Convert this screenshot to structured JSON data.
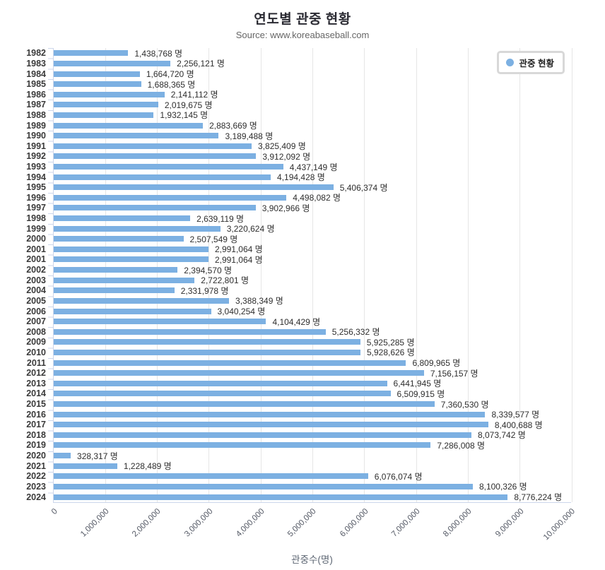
{
  "chart": {
    "title": "연도별 관중 현황",
    "subtitle": "Source: www.koreabaseball.com",
    "legend_label": "관중 현황",
    "xaxis_title": "관중수(명)"
  },
  "colors": {
    "bar": "#7CB0E2",
    "axis_line": "#ccd6eb",
    "gridline": "#e6e6e6",
    "title_text": "#2b2b33",
    "subtitle_text": "#666666"
  },
  "chart_data": {
    "type": "bar",
    "orientation": "horizontal",
    "title": "연도별 관중 현황",
    "subtitle": "Source: www.koreabaseball.com",
    "xlabel": "관중수(명)",
    "ylabel": "",
    "legend": [
      "관중 현황"
    ],
    "legend_position": "top-right",
    "grid": true,
    "xlim": [
      0,
      10000000
    ],
    "unit": "명",
    "bar_color": "#7CB0E2",
    "x_ticks": [
      "0",
      "1,000,000",
      "2,000,000",
      "3,000,000",
      "4,000,000",
      "5,000,000",
      "6,000,000",
      "7,000,000",
      "8,000,000",
      "9,000,000",
      "10,000,000"
    ],
    "categories": [
      "1982",
      "1983",
      "1984",
      "1985",
      "1986",
      "1987",
      "1988",
      "1989",
      "1990",
      "1991",
      "1992",
      "1993",
      "1994",
      "1995",
      "1996",
      "1997",
      "1998",
      "1999",
      "2000",
      "2001",
      "2001",
      "2002",
      "2003",
      "2004",
      "2005",
      "2006",
      "2007",
      "2008",
      "2009",
      "2010",
      "2011",
      "2012",
      "2013",
      "2014",
      "2015",
      "2016",
      "2017",
      "2018",
      "2019",
      "2020",
      "2021",
      "2022",
      "2023",
      "2024"
    ],
    "values": [
      1438768,
      2256121,
      1664720,
      1688365,
      2141112,
      2019675,
      1932145,
      2883669,
      3189488,
      3825409,
      3912092,
      4437149,
      4194428,
      5406374,
      4498082,
      3902966,
      2639119,
      3220624,
      2507549,
      2991064,
      2991064,
      2394570,
      2722801,
      2331978,
      3388349,
      3040254,
      4104429,
      5256332,
      5925285,
      5928626,
      6809965,
      7156157,
      6441945,
      6509915,
      7360530,
      8339577,
      8400688,
      8073742,
      7286008,
      328317,
      1228489,
      6076074,
      8100326,
      8776224
    ],
    "value_labels": [
      "1,438,768 명",
      "2,256,121 명",
      "1,664,720 명",
      "1,688,365 명",
      "2,141,112 명",
      "2,019,675 명",
      "1,932,145 명",
      "2,883,669 명",
      "3,189,488 명",
      "3,825,409 명",
      "3,912,092 명",
      "4,437,149 명",
      "4,194,428 명",
      "5,406,374 명",
      "4,498,082 명",
      "3,902,966 명",
      "2,639,119 명",
      "3,220,624 명",
      "2,507,549 명",
      "2,991,064 명",
      "2,991,064 명",
      "2,394,570 명",
      "2,722,801 명",
      "2,331,978 명",
      "3,388,349 명",
      "3,040,254 명",
      "4,104,429 명",
      "5,256,332 명",
      "5,925,285 명",
      "5,928,626 명",
      "6,809,965 명",
      "7,156,157 명",
      "6,441,945 명",
      "6,509,915 명",
      "7,360,530 명",
      "8,339,577 명",
      "8,400,688 명",
      "8,073,742 명",
      "7,286,008 명",
      "328,317 명",
      "1,228,489 명",
      "6,076,074 명",
      "8,100,326 명",
      "8,776,224 명"
    ]
  }
}
